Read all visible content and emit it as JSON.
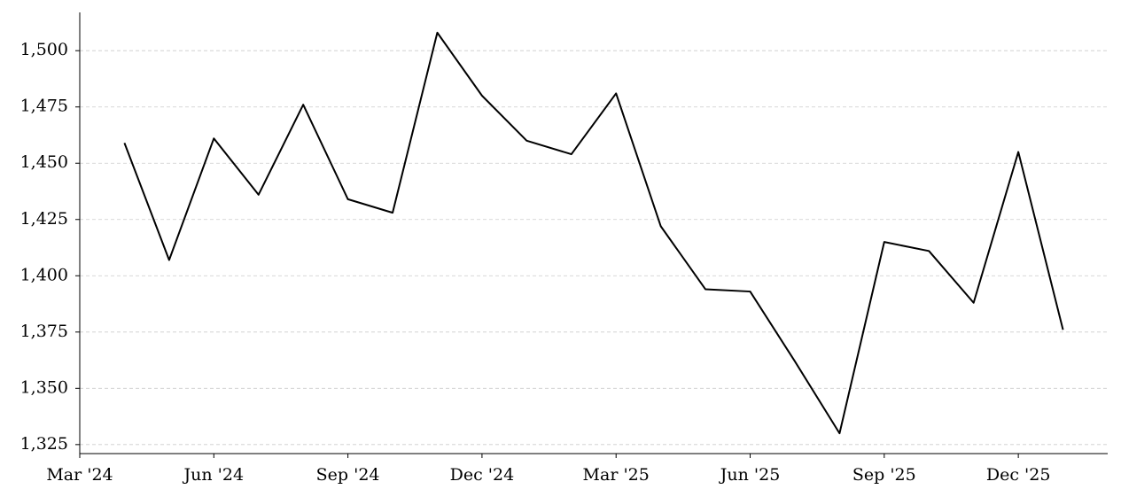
{
  "chart_data": {
    "type": "line",
    "x": [
      "2024-04",
      "2024-05",
      "2024-06",
      "2024-07",
      "2024-08",
      "2024-09",
      "2024-10",
      "2024-11",
      "2024-12",
      "2025-01",
      "2025-02",
      "2025-03",
      "2025-04",
      "2025-05",
      "2025-06",
      "2025-07",
      "2025-08",
      "2025-09",
      "2025-10",
      "2025-11",
      "2025-12",
      "2026-01"
    ],
    "series": [
      {
        "color": "#000000",
        "values": [
          1459,
          1407,
          1461,
          1436,
          1476,
          1434,
          1428,
          1508,
          1480,
          1460,
          1454,
          1481,
          1422,
          1394,
          1393,
          1362,
          1330,
          1415,
          1411,
          1388,
          1455,
          1376
        ]
      }
    ],
    "xlim": [
      "2024-03",
      "2026-02"
    ],
    "xticks": [
      {
        "value": "2024-03",
        "label": "Mar '24"
      },
      {
        "value": "2024-06",
        "label": "Jun '24"
      },
      {
        "value": "2024-09",
        "label": "Sep '24"
      },
      {
        "value": "2024-12",
        "label": "Dec '24"
      },
      {
        "value": "2025-03",
        "label": "Mar '25"
      },
      {
        "value": "2025-06",
        "label": "Jun '25"
      },
      {
        "value": "2025-09",
        "label": "Sep '25"
      },
      {
        "value": "2025-12",
        "label": "Dec '25"
      }
    ],
    "ylim": [
      1321,
      1517
    ],
    "yticks": [
      {
        "value": 1325,
        "label": "1,325"
      },
      {
        "value": 1350,
        "label": "1,350"
      },
      {
        "value": 1375,
        "label": "1,375"
      },
      {
        "value": 1400,
        "label": "1,400"
      },
      {
        "value": 1425,
        "label": "1,425"
      },
      {
        "value": 1450,
        "label": "1,450"
      },
      {
        "value": 1475,
        "label": "1,475"
      },
      {
        "value": 1500,
        "label": "1,500"
      }
    ],
    "grid": true
  }
}
